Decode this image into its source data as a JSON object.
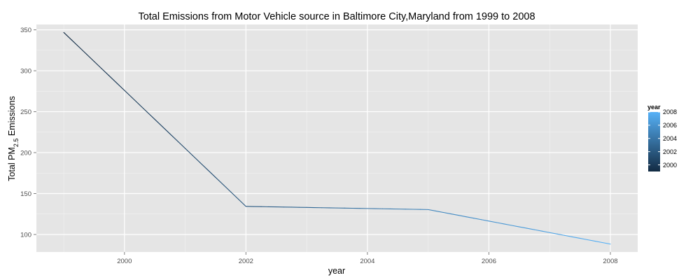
{
  "chart_data": {
    "type": "line",
    "title": "Total Emissions from Motor Vehicle source in Baltimore City,Maryland from 1999 to 2008",
    "xlabel": "year",
    "ylabel": {
      "prefix": "Total PM",
      "subscript": "2.5",
      "suffix": " Emissions"
    },
    "x": [
      1999,
      2002,
      2005,
      2008
    ],
    "series": [
      {
        "values": [
          346.82,
          134.31,
          130.43,
          88.28
        ]
      }
    ],
    "xlim": [
      1998.55,
      2008.45
    ],
    "ylim": [
      78.6,
      356.5
    ],
    "x_ticks": [
      2000,
      2002,
      2004,
      2006,
      2008
    ],
    "x_tick_labels": [
      "2000",
      "2002",
      "2004",
      "2006",
      "2008"
    ],
    "y_ticks": [
      100,
      150,
      200,
      250,
      300,
      350
    ],
    "y_tick_labels": [
      "100",
      "150",
      "200",
      "250",
      "300",
      "350"
    ],
    "grid": true,
    "panel_color": "#e5e5e5",
    "color_scale": {
      "low": "#132b43",
      "high": "#56b1f7",
      "range": [
        1999,
        2008
      ]
    },
    "legend": {
      "title": "year",
      "placement": "right",
      "breaks": [
        2000,
        2002,
        2004,
        2006,
        2008
      ],
      "labels": [
        "2000",
        "2002",
        "2004",
        "2006",
        "2008"
      ]
    }
  }
}
